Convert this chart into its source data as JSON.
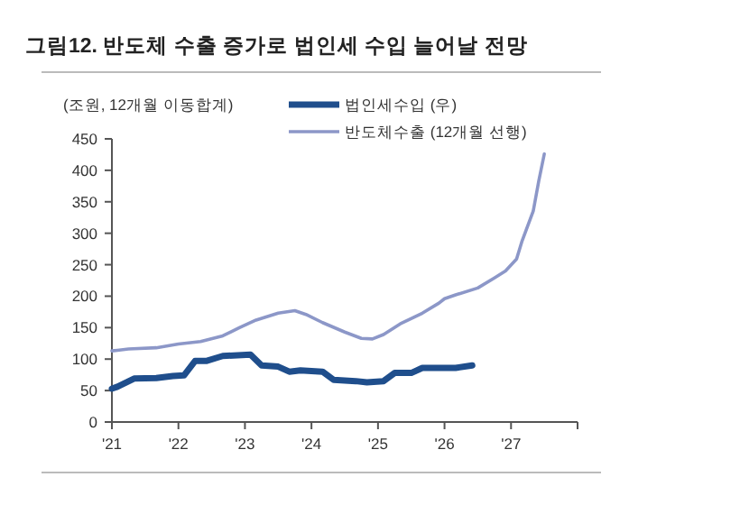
{
  "chart_data": {
    "type": "line",
    "title": "그림12. 반도체 수출 증가로 법인세 수입 늘어날 전망",
    "ylabel": "(조원, 12개월 이동합계)",
    "xlim": [
      "2021-01",
      "2028-01"
    ],
    "xticks": [
      {
        "value": "2021-01",
        "label": "'21"
      },
      {
        "value": "2022-01",
        "label": "'22"
      },
      {
        "value": "2023-01",
        "label": "'23"
      },
      {
        "value": "2024-01",
        "label": "'24"
      },
      {
        "value": "2025-01",
        "label": "'25"
      },
      {
        "value": "2026-01",
        "label": "'26"
      },
      {
        "value": "2027-01",
        "label": "'27"
      },
      {
        "value": "2028-01",
        "label": null
      }
    ],
    "ylim": [
      0,
      450
    ],
    "yticks": [
      0,
      50,
      100,
      150,
      200,
      250,
      300,
      350,
      400,
      450
    ],
    "grid": false,
    "legend": "top",
    "marker": "none",
    "series": [
      {
        "name": "법인세수입 (우)",
        "color": "#1f4e8c",
        "x": [
          "2021-01",
          "2021-02",
          "2021-05",
          "2021-09",
          "2021-12",
          "2022-02",
          "2022-04",
          "2022-06",
          "2022-09",
          "2023-02",
          "2023-04",
          "2023-07",
          "2023-09",
          "2023-11",
          "2024-03",
          "2024-05",
          "2024-09",
          "2024-11",
          "2025-02",
          "2025-04",
          "2025-07",
          "2025-09",
          "2026-03",
          "2026-06"
        ],
        "values": [
          53,
          56,
          69,
          70,
          73,
          74,
          97,
          97,
          105,
          107,
          90,
          88,
          80,
          82,
          80,
          67,
          65,
          63,
          65,
          78,
          78,
          86,
          86,
          90
        ]
      },
      {
        "name": "반도체수출 (12개월 선행)",
        "color": "#8c97c8",
        "x": [
          "2021-01",
          "2021-02",
          "2021-04",
          "2021-09",
          "2022-01",
          "2022-05",
          "2022-09",
          "2022-12",
          "2023-03",
          "2023-07",
          "2023-10",
          "2023-12",
          "2024-03",
          "2024-07",
          "2024-10",
          "2024-12",
          "2025-02",
          "2025-05",
          "2025-09",
          "2025-12",
          "2026-01",
          "2026-03",
          "2026-07",
          "2026-10",
          "2026-12",
          "2027-02",
          "2027-03",
          "2027-05",
          "2027-06",
          "2027-07"
        ],
        "values": [
          113,
          114,
          116,
          118,
          124,
          128,
          137,
          150,
          162,
          173,
          177,
          171,
          158,
          143,
          133,
          132,
          139,
          156,
          173,
          189,
          196,
          202,
          213,
          229,
          240,
          259,
          288,
          335,
          383,
          426
        ]
      }
    ]
  }
}
